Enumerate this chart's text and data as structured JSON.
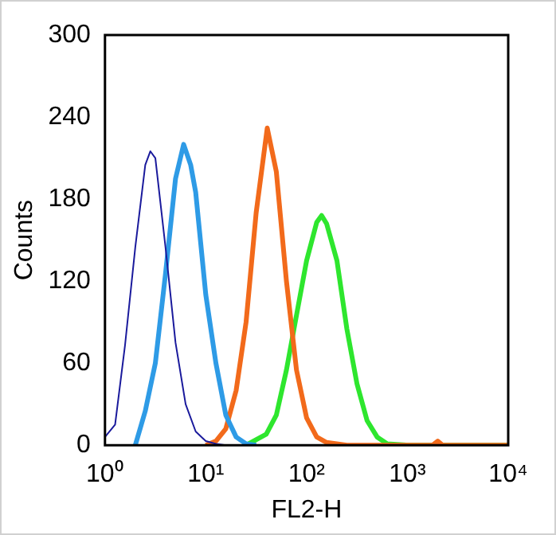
{
  "chart_data": {
    "type": "line",
    "xlabel": "FL2-H",
    "ylabel": "Counts",
    "log": "x",
    "grid": false,
    "legend": false,
    "marker": "none",
    "xlim": [
      1,
      10000
    ],
    "xticks": [
      {
        "value": 1,
        "label": "10⁰"
      },
      {
        "value": 10,
        "label": "10¹"
      },
      {
        "value": 100,
        "label": "10²"
      },
      {
        "value": 1000,
        "label": "10³"
      },
      {
        "value": 10000,
        "label": "10⁴"
      }
    ],
    "ylim": [
      0,
      300
    ],
    "yticks": [
      0,
      60,
      120,
      180,
      240,
      300
    ],
    "series": [
      {
        "color": "#1a1a9c",
        "x": [
          1,
          1.26,
          1.58,
          2,
          2.51,
          2.82,
          3.16,
          3.98,
          5.01,
          6.31,
          7.94,
          10,
          12.6,
          15.8
        ],
        "values": [
          6,
          15,
          73,
          145,
          205,
          215,
          210,
          145,
          75,
          30,
          10,
          3,
          1,
          0
        ]
      },
      {
        "color": "#2e9be6",
        "x": [
          2,
          2.51,
          3.16,
          3.98,
          5.01,
          6.03,
          7.08,
          7.94,
          10,
          12.6,
          15.8,
          20,
          25.1,
          31.6
        ],
        "values": [
          0,
          25,
          60,
          125,
          195,
          220,
          205,
          185,
          110,
          60,
          22,
          6,
          1,
          0
        ]
      },
      {
        "color": "#f26a1b",
        "x": [
          10,
          12.6,
          15.8,
          20,
          25.1,
          31.6,
          40.7,
          50.1,
          63.1,
          79.4,
          100,
          126,
          158,
          251,
          1780,
          2000,
          2240,
          10000
        ],
        "values": [
          0,
          3,
          12,
          40,
          90,
          170,
          232,
          200,
          120,
          55,
          20,
          6,
          2,
          0,
          0,
          3,
          0,
          0
        ]
      },
      {
        "color": "#2ee62e",
        "x": [
          25.1,
          39.8,
          50.1,
          63.1,
          79.4,
          100,
          126,
          141,
          158,
          200,
          251,
          316,
          398,
          501,
          631,
          1000,
          10000
        ],
        "values": [
          0,
          8,
          22,
          55,
          95,
          135,
          163,
          168,
          162,
          135,
          85,
          45,
          18,
          6,
          1,
          0,
          0
        ]
      }
    ]
  }
}
